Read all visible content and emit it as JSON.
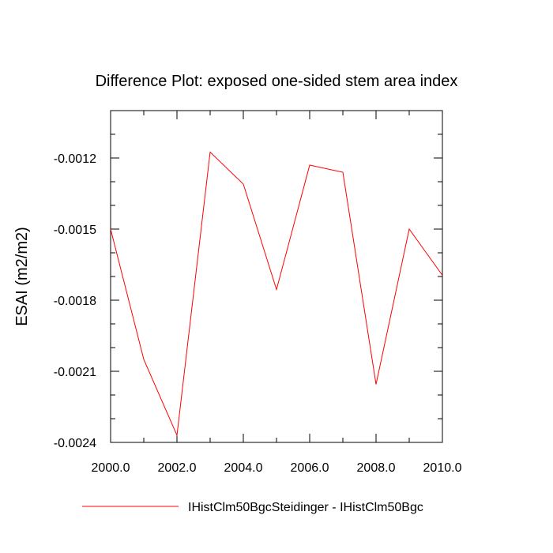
{
  "chart_data": {
    "type": "line",
    "title": "Difference Plot: exposed one-sided stem area index",
    "xlabel": "",
    "ylabel": "ESAI  (m2/m2)",
    "xlim": [
      2000,
      2010
    ],
    "ylim": [
      -0.0024,
      -0.001
    ],
    "x_ticks": [
      2000,
      2002,
      2004,
      2006,
      2008,
      2010
    ],
    "x_tick_labels": [
      "2000.0",
      "2002.0",
      "2004.0",
      "2006.0",
      "2008.0",
      "2010.0"
    ],
    "y_ticks": [
      -0.0024,
      -0.0021,
      -0.0018,
      -0.0015,
      -0.0012
    ],
    "y_tick_labels": [
      "-0.0024",
      "-0.0021",
      "-0.0018",
      "-0.0015",
      "-0.0012"
    ],
    "grid": false,
    "legend_position": "bottom",
    "series": [
      {
        "name": "IHistClm50BgcSteidinger - IHistClm50Bgc",
        "color": "#ff0000",
        "x": [
          2000,
          2001,
          2002,
          2003,
          2004,
          2005,
          2006,
          2007,
          2008,
          2009,
          2010
        ],
        "y": [
          -0.0015,
          -0.00205,
          -0.00237,
          -0.001175,
          -0.00131,
          -0.001755,
          -0.00123,
          -0.00126,
          -0.002155,
          -0.0015,
          -0.001695
        ]
      }
    ]
  }
}
